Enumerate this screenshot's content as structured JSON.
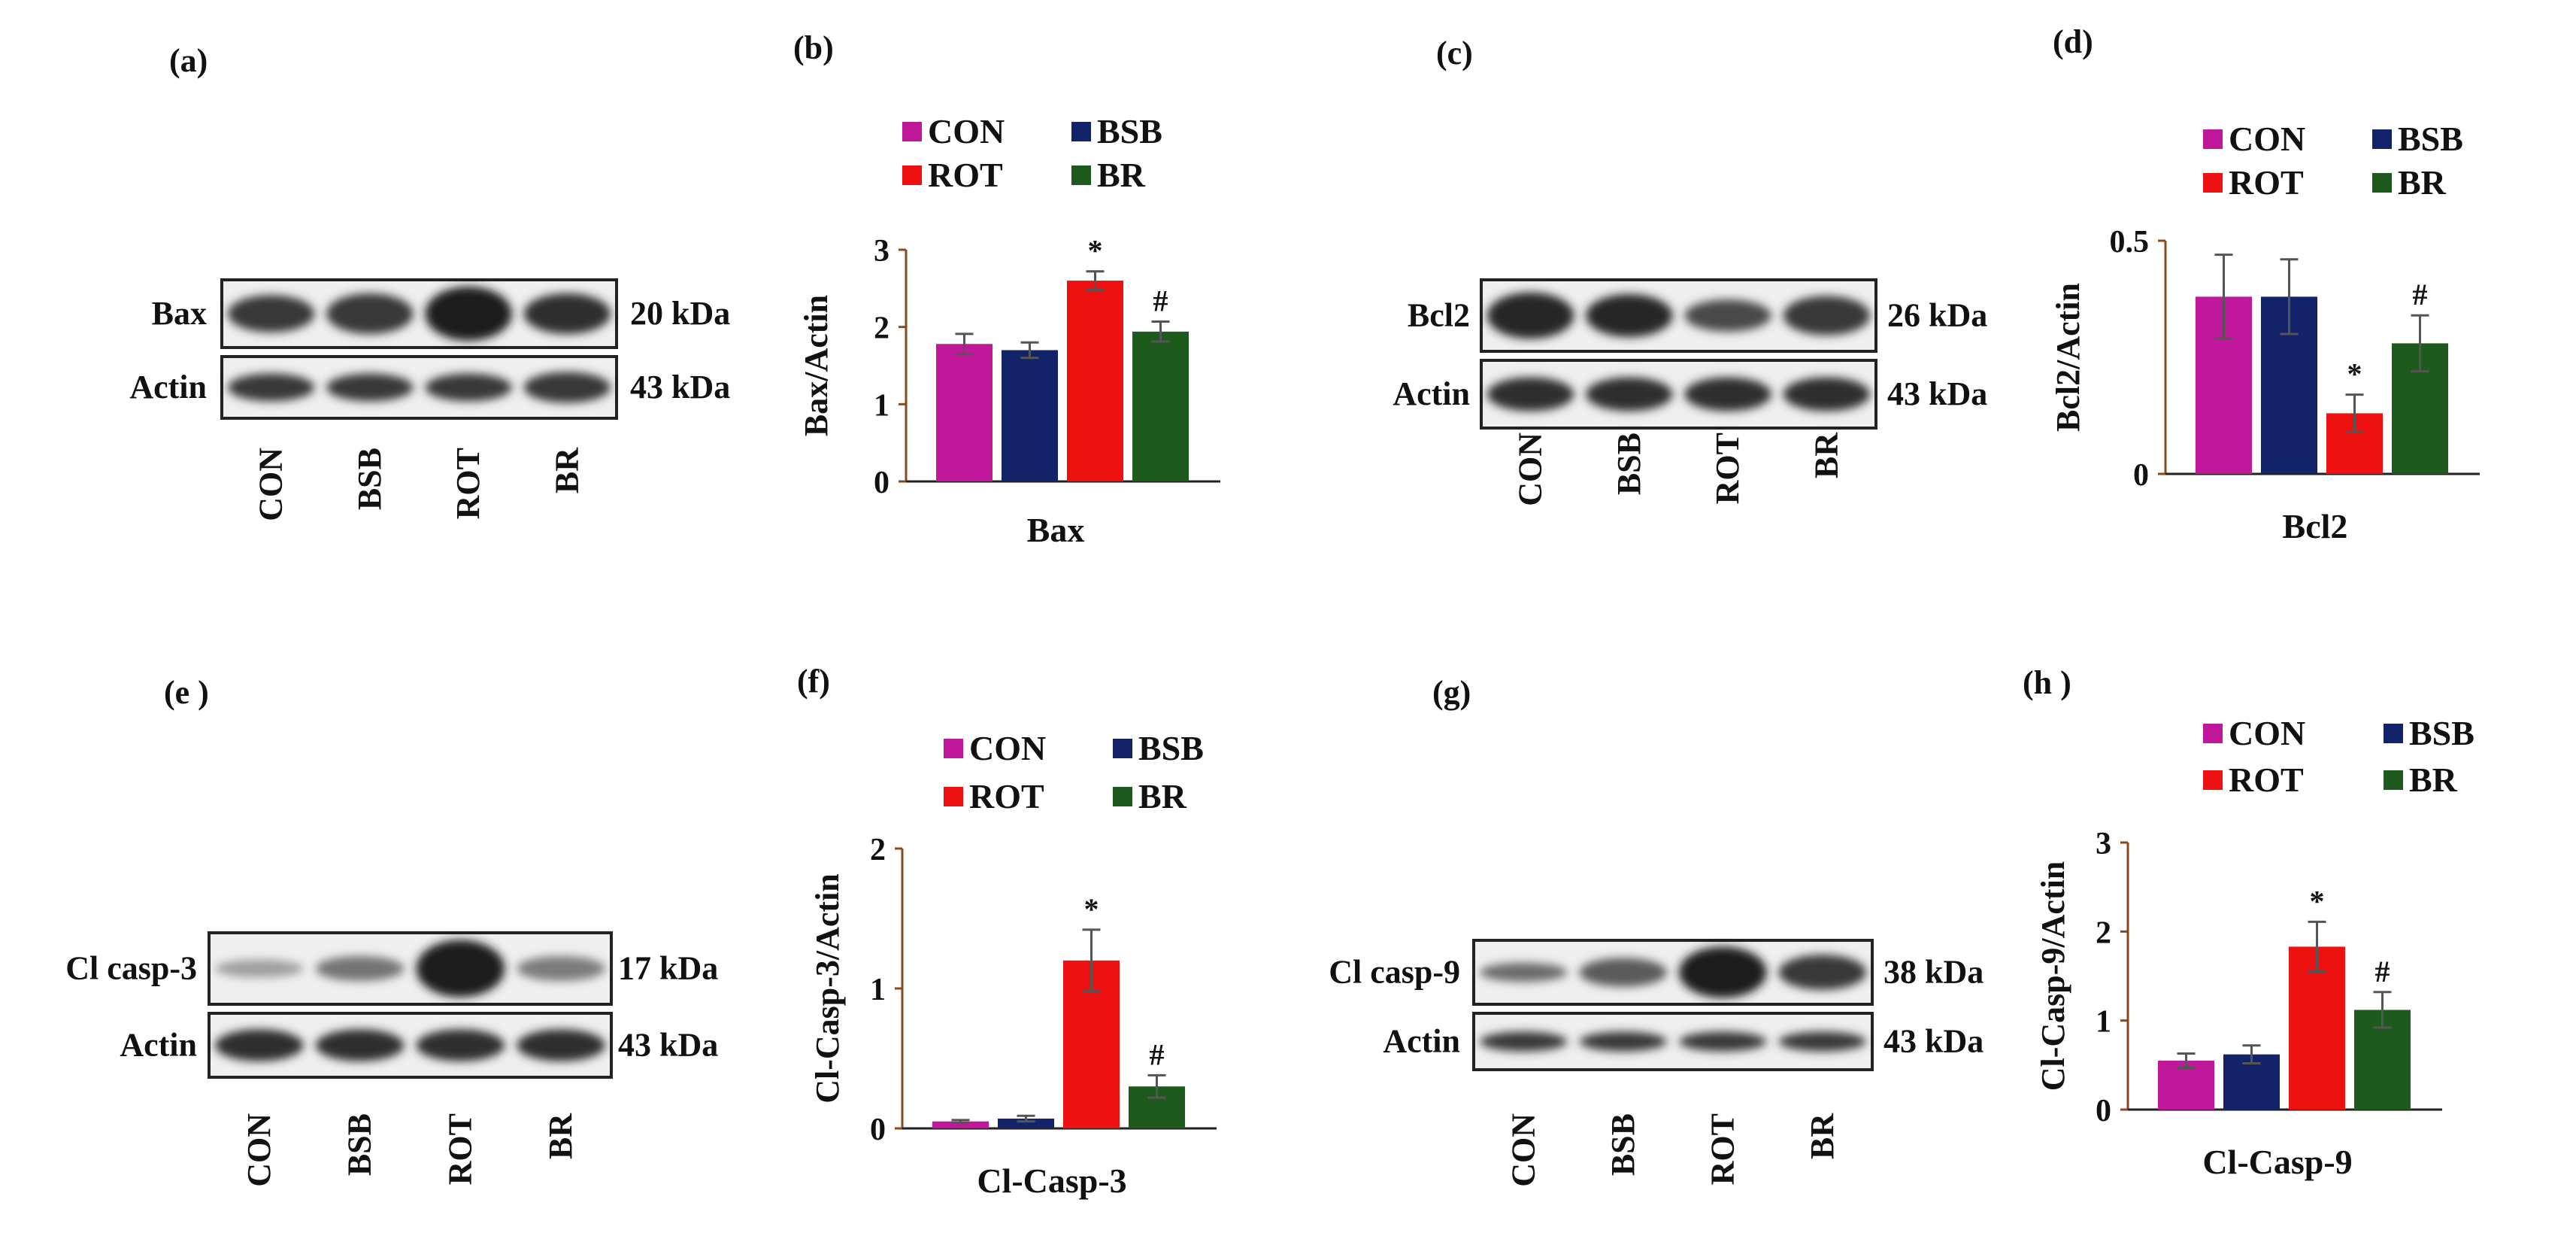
{
  "colors": {
    "CON": "#c0189a",
    "BSB": "#12236a",
    "ROT": "#ee1111",
    "BR": "#1e5a1e",
    "error_bar": "#555555",
    "axis": "#8a4a1e"
  },
  "blots": [
    {
      "label": "(a)",
      "lanes": [
        "CON",
        "BSB",
        "ROT",
        "BR"
      ],
      "rows": [
        {
          "protein": "Bax",
          "size": "20 kDa",
          "intensities": [
            0.85,
            0.85,
            1.0,
            0.9
          ],
          "heights": [
            0.55,
            0.6,
            0.8,
            0.6
          ]
        },
        {
          "protein": "Actin",
          "size": "43 kDa",
          "intensities": [
            0.85,
            0.85,
            0.85,
            0.85
          ],
          "heights": [
            0.45,
            0.45,
            0.45,
            0.5
          ]
        }
      ]
    },
    {
      "label": "(c)",
      "lanes": [
        "CON",
        "BSB",
        "ROT",
        "BR"
      ],
      "rows": [
        {
          "protein": "Bcl2",
          "size": "26 kDa",
          "intensities": [
            0.95,
            0.95,
            0.75,
            0.85
          ],
          "heights": [
            0.65,
            0.6,
            0.45,
            0.55
          ]
        },
        {
          "protein": "Actin",
          "size": "43 kDa",
          "intensities": [
            0.9,
            0.9,
            0.9,
            0.9
          ],
          "heights": [
            0.5,
            0.5,
            0.5,
            0.5
          ]
        }
      ]
    },
    {
      "label": "(e )",
      "lanes": [
        "CON",
        "BSB",
        "ROT",
        "BR"
      ],
      "rows": [
        {
          "protein": "Cl casp-3",
          "size": "17 kDa",
          "intensities": [
            0.25,
            0.5,
            1.0,
            0.45
          ],
          "heights": [
            0.25,
            0.35,
            0.8,
            0.35
          ]
        },
        {
          "protein": "Actin",
          "size": "43 kDa",
          "intensities": [
            0.9,
            0.9,
            0.9,
            0.9
          ],
          "heights": [
            0.5,
            0.5,
            0.5,
            0.5
          ]
        }
      ]
    },
    {
      "label": "(g)",
      "lanes": [
        "CON",
        "BSB",
        "ROT",
        "BR"
      ],
      "rows": [
        {
          "protein": "Cl casp-9",
          "size": "38  kDa",
          "intensities": [
            0.55,
            0.65,
            1.0,
            0.85
          ],
          "heights": [
            0.3,
            0.45,
            0.8,
            0.55
          ]
        },
        {
          "protein": "Actin",
          "size": "43 kDa",
          "intensities": [
            0.85,
            0.85,
            0.85,
            0.85
          ],
          "heights": [
            0.35,
            0.35,
            0.35,
            0.35
          ]
        }
      ]
    }
  ],
  "chart_data": [
    {
      "panel": "(b)",
      "type": "bar",
      "xlabel": "Bax",
      "ylabel": "Bax/Actin",
      "ylim": [
        0,
        3
      ],
      "yticks": [
        0,
        1,
        2,
        3
      ],
      "categories": [
        "CON",
        "BSB",
        "ROT",
        "BR"
      ],
      "legend": [
        "CON",
        "BSB",
        "ROT",
        "BR"
      ],
      "legend_position": "top",
      "values": [
        1.78,
        1.7,
        2.6,
        1.94
      ],
      "errors": [
        0.13,
        0.1,
        0.12,
        0.13
      ],
      "annotations": [
        "",
        "",
        "*",
        "#"
      ]
    },
    {
      "panel": "(d)",
      "type": "bar",
      "xlabel": "Bcl2",
      "ylabel": "Bcl2/Actin",
      "ylim": [
        0,
        0.5
      ],
      "yticks": [
        0,
        0.5
      ],
      "categories": [
        "CON",
        "BSB",
        "ROT",
        "BR"
      ],
      "legend": [
        "CON",
        "BSB",
        "ROT",
        "BR"
      ],
      "legend_position": "top",
      "values": [
        0.38,
        0.38,
        0.13,
        0.28
      ],
      "errors": [
        0.09,
        0.08,
        0.04,
        0.06
      ],
      "annotations": [
        "",
        "",
        "*",
        "#"
      ]
    },
    {
      "panel": "(f)",
      "type": "bar",
      "xlabel": "Cl-Casp-3",
      "ylabel": "Cl-Casp-3/Actin",
      "ylim": [
        0,
        2
      ],
      "yticks": [
        0,
        1,
        2
      ],
      "categories": [
        "CON",
        "BSB",
        "ROT",
        "BR"
      ],
      "legend": [
        "CON",
        "BSB",
        "ROT",
        "BR"
      ],
      "legend_position": "top",
      "values": [
        0.05,
        0.07,
        1.2,
        0.3
      ],
      "errors": [
        0.01,
        0.02,
        0.22,
        0.08
      ],
      "annotations": [
        "",
        "",
        "*",
        "#"
      ]
    },
    {
      "panel": "(h )",
      "type": "bar",
      "xlabel": "Cl-Casp-9",
      "ylabel": "Cl-Casp-9/Actin",
      "ylim": [
        0,
        3
      ],
      "yticks": [
        0,
        1,
        2,
        3
      ],
      "categories": [
        "CON",
        "BSB",
        "ROT",
        "BR"
      ],
      "legend": [
        "CON",
        "BSB",
        "ROT",
        "BR"
      ],
      "legend_position": "top",
      "values": [
        0.55,
        0.62,
        1.83,
        1.12
      ],
      "errors": [
        0.08,
        0.1,
        0.28,
        0.2
      ],
      "annotations": [
        "",
        "",
        "*",
        "#"
      ]
    }
  ]
}
